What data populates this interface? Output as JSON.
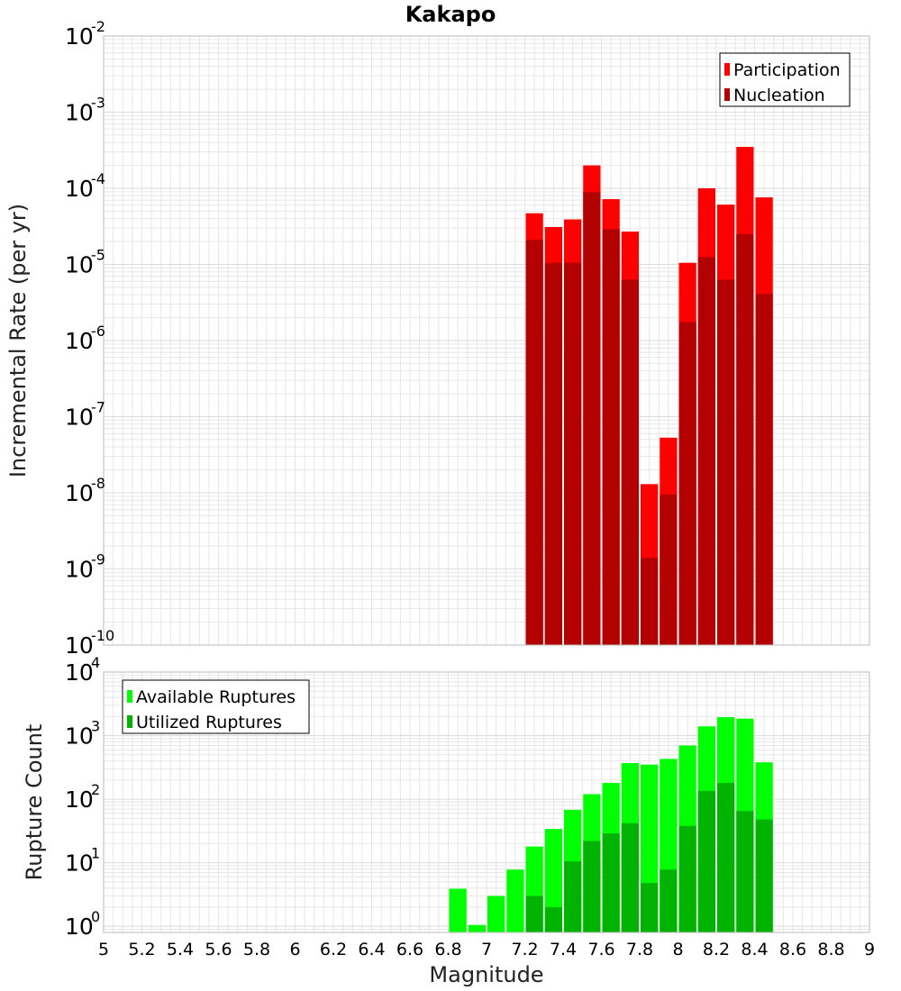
{
  "title": "Kakapo",
  "xlabel": "Magnitude",
  "colors": {
    "participation": "#ff0000",
    "nucleation": "#b30000",
    "available": "#00ff00",
    "utilized": "#00b300",
    "grid": "#e6e6e6",
    "frame": "#bbbbbb"
  },
  "chart_data": [
    {
      "type": "bar",
      "ylabel": "Incremental Rate (per yr)",
      "yscale": "log",
      "ylim": [
        1e-10,
        0.01
      ],
      "xlim": [
        5,
        9
      ],
      "grid": true,
      "legend_position": "top-right",
      "x": [
        7.25,
        7.35,
        7.45,
        7.55,
        7.65,
        7.75,
        7.85,
        7.95,
        8.05,
        8.15,
        8.25,
        8.35,
        8.45
      ],
      "series": [
        {
          "name": "Participation",
          "values": [
            4.7e-05,
            3.1e-05,
            3.9e-05,
            0.0002,
            7.2e-05,
            2.7e-05,
            1.3e-08,
            5.3e-08,
            1.05e-05,
            0.0001,
            6.1e-05,
            0.00035,
            7.6e-05
          ]
        },
        {
          "name": "Nucleation",
          "values": [
            2.1e-05,
            1.05e-05,
            1.05e-05,
            8.9e-05,
            2.9e-05,
            6.3e-06,
            1.4e-09,
            9.5e-09,
            1.75e-06,
            1.25e-05,
            6.3e-06,
            2.5e-05,
            4.1e-06
          ]
        }
      ]
    },
    {
      "type": "bar",
      "ylabel": "Rupture Count",
      "yscale": "log",
      "ylim": [
        0.8,
        10000
      ],
      "xlim": [
        5,
        9
      ],
      "grid": true,
      "legend_position": "top-left",
      "x": [
        6.85,
        6.95,
        7.05,
        7.15,
        7.25,
        7.35,
        7.45,
        7.55,
        7.65,
        7.75,
        7.85,
        7.95,
        8.05,
        8.15,
        8.25,
        8.35,
        8.45
      ],
      "series": [
        {
          "name": "Available Ruptures",
          "values": [
            3.9,
            1.05,
            3.0,
            7.8,
            18,
            34,
            68,
            120,
            180,
            370,
            350,
            430,
            700,
            1400,
            1950,
            1850,
            380
          ]
        },
        {
          "name": "Utilized Ruptures",
          "values": [
            0,
            0,
            0,
            0,
            3.0,
            2.0,
            10.5,
            22,
            29,
            42,
            4.8,
            7.8,
            38,
            135,
            180,
            65,
            48
          ]
        }
      ]
    }
  ],
  "x_ticks": [
    "5",
    "5.2",
    "5.4",
    "5.6",
    "5.8",
    "6",
    "6.2",
    "6.4",
    "6.6",
    "6.8",
    "7",
    "7.2",
    "7.4",
    "7.6",
    "7.8",
    "8",
    "8.2",
    "8.4",
    "8.6",
    "8.8",
    "9"
  ],
  "y_ticks_top": [
    {
      "base": "10",
      "exp": "-2",
      "value": 0.01
    },
    {
      "base": "10",
      "exp": "-3",
      "value": 0.001
    },
    {
      "base": "10",
      "exp": "-4",
      "value": 0.0001
    },
    {
      "base": "10",
      "exp": "-5",
      "value": 1e-05
    },
    {
      "base": "10",
      "exp": "-6",
      "value": 1e-06
    },
    {
      "base": "10",
      "exp": "-7",
      "value": 1e-07
    },
    {
      "base": "10",
      "exp": "-8",
      "value": 1e-08
    },
    {
      "base": "10",
      "exp": "-9",
      "value": 1e-09
    },
    {
      "base": "10",
      "exp": "-10",
      "value": 1e-10
    }
  ],
  "y_ticks_bottom": [
    {
      "base": "10",
      "exp": "4",
      "value": 10000
    },
    {
      "base": "10",
      "exp": "3",
      "value": 1000
    },
    {
      "base": "10",
      "exp": "2",
      "value": 100
    },
    {
      "base": "10",
      "exp": "1",
      "value": 10
    },
    {
      "base": "10",
      "exp": "0",
      "value": 1
    }
  ]
}
